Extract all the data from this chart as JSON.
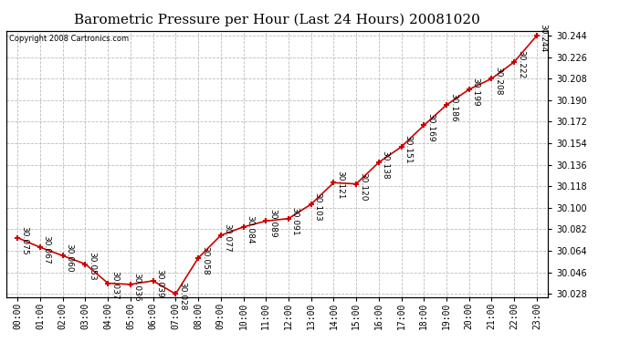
{
  "title": "Barometric Pressure per Hour (Last 24 Hours) 20081020",
  "copyright": "Copyright 2008 Cartronics.com",
  "hours": [
    "00:00",
    "01:00",
    "02:00",
    "03:00",
    "04:00",
    "05:00",
    "06:00",
    "07:00",
    "08:00",
    "09:00",
    "10:00",
    "11:00",
    "12:00",
    "13:00",
    "14:00",
    "15:00",
    "16:00",
    "17:00",
    "18:00",
    "19:00",
    "20:00",
    "21:00",
    "22:00",
    "23:00"
  ],
  "values": [
    30.075,
    30.067,
    30.06,
    30.053,
    30.037,
    30.036,
    30.039,
    30.028,
    30.058,
    30.077,
    30.084,
    30.089,
    30.091,
    30.103,
    30.121,
    30.12,
    30.138,
    30.151,
    30.169,
    30.186,
    30.199,
    30.208,
    30.222,
    30.244
  ],
  "line_color": "#cc0000",
  "marker_color": "#cc0000",
  "bg_color": "#ffffff",
  "plot_bg_color": "#ffffff",
  "grid_color": "#bbbbbb",
  "title_fontsize": 11,
  "label_fontsize": 6.5,
  "tick_fontsize": 7,
  "copyright_fontsize": 6,
  "ylim_min": 30.025,
  "ylim_max": 30.248,
  "ytick_values": [
    30.028,
    30.046,
    30.064,
    30.082,
    30.1,
    30.118,
    30.136,
    30.154,
    30.172,
    30.19,
    30.208,
    30.226,
    30.244
  ]
}
